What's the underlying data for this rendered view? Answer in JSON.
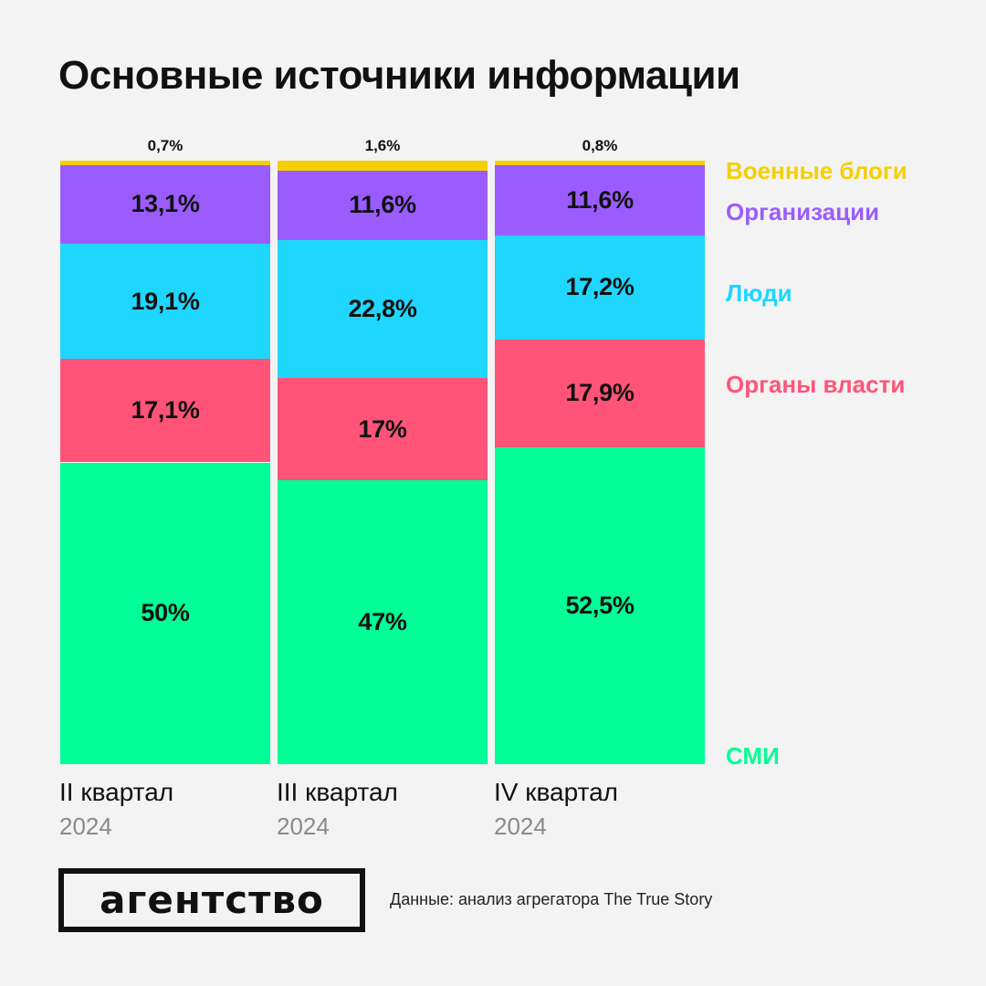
{
  "title": "Основные источники информации",
  "colors": {
    "background": "#f3f3f3",
    "Военные блоги": "#f5cf00",
    "Организации": "#9b5cff",
    "Люди": "#1fd6ff",
    "Органы власти": "#ff5478",
    "СМИ": "#00ff96"
  },
  "chart_data": {
    "type": "bar",
    "stacked": true,
    "orientation": "vertical",
    "categories": [
      "II квартал 2024",
      "III квартал 2024",
      "IV квартал 2024"
    ],
    "quarters": [
      {
        "label": "II квартал",
        "year": "2024"
      },
      {
        "label": "III квартал",
        "year": "2024"
      },
      {
        "label": "IV квартал",
        "year": "2024"
      }
    ],
    "series": [
      {
        "name": "СМИ",
        "values": [
          50,
          47,
          52.5
        ],
        "labels": [
          "50%",
          "47%",
          "52,5%"
        ]
      },
      {
        "name": "Органы власти",
        "values": [
          17.1,
          17,
          17.9
        ],
        "labels": [
          "17,1%",
          "17%",
          "17,9%"
        ]
      },
      {
        "name": "Люди",
        "values": [
          19.1,
          22.8,
          17.2
        ],
        "labels": [
          "19,1%",
          "22,8%",
          "17,2%"
        ]
      },
      {
        "name": "Организации",
        "values": [
          13.1,
          11.6,
          11.6
        ],
        "labels": [
          "13,1%",
          "11,6%",
          "11,6%"
        ]
      },
      {
        "name": "Военные блоги",
        "values": [
          0.7,
          1.6,
          0.8
        ],
        "labels": [
          "0,7%",
          "1,6%",
          "0,8%"
        ]
      }
    ],
    "unit": "%",
    "legend_placement": "right"
  },
  "footer": {
    "logo": "агентство",
    "source": "Данные: анализ агрегатора The True Story"
  }
}
